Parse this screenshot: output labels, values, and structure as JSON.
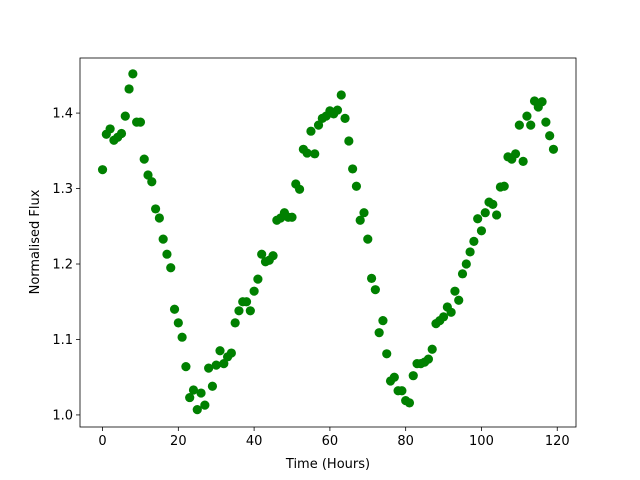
{
  "chart_data": {
    "type": "scatter",
    "x_label": "Time (Hours)",
    "y_label": "Normalised Flux",
    "x": [
      0,
      1,
      2,
      3,
      4,
      5,
      6,
      7,
      8,
      9,
      10,
      11,
      12,
      13,
      14,
      15,
      16,
      17,
      18,
      19,
      20,
      21,
      22,
      23,
      24,
      25,
      26,
      27,
      28,
      29,
      30,
      31,
      32,
      33,
      34,
      35,
      36,
      37,
      38,
      39,
      40,
      41,
      42,
      43,
      44,
      45,
      46,
      47,
      48,
      49,
      50,
      51,
      52,
      53,
      54,
      55,
      56,
      57,
      58,
      59,
      60,
      61,
      62,
      63,
      64,
      65,
      66,
      67,
      68,
      69,
      70,
      71,
      72,
      73,
      74,
      75,
      76,
      77,
      78,
      79,
      80,
      81,
      82,
      83,
      84,
      85,
      86,
      87,
      88,
      89,
      90,
      91,
      92,
      93,
      94,
      95,
      96,
      97,
      98,
      99,
      100,
      101,
      102,
      103,
      104,
      105,
      106,
      107,
      108,
      109,
      110,
      111,
      112,
      113,
      114,
      115,
      116,
      117,
      118,
      119
    ],
    "series": [
      {
        "color": "#008000",
        "values": [
          1.325,
          1.372,
          1.379,
          1.364,
          1.368,
          1.373,
          1.396,
          1.432,
          1.452,
          1.388,
          1.388,
          1.339,
          1.318,
          1.309,
          1.273,
          1.261,
          1.233,
          1.213,
          1.195,
          1.14,
          1.122,
          1.103,
          1.064,
          1.023,
          1.033,
          1.007,
          1.029,
          1.013,
          1.062,
          1.038,
          1.066,
          1.085,
          1.068,
          1.077,
          1.082,
          1.122,
          1.138,
          1.15,
          1.15,
          1.138,
          1.164,
          1.18,
          1.213,
          1.203,
          1.205,
          1.211,
          1.258,
          1.261,
          1.268,
          1.262,
          1.262,
          1.306,
          1.299,
          1.352,
          1.347,
          1.376,
          1.346,
          1.384,
          1.393,
          1.396,
          1.403,
          1.399,
          1.404,
          1.424,
          1.393,
          1.363,
          1.326,
          1.303,
          1.258,
          1.268,
          1.233,
          1.181,
          1.166,
          1.109,
          1.125,
          1.081,
          1.045,
          1.05,
          1.032,
          1.032,
          1.019,
          1.016,
          1.052,
          1.068,
          1.068,
          1.07,
          1.074,
          1.087,
          1.121,
          1.125,
          1.13,
          1.143,
          1.136,
          1.164,
          1.152,
          1.187,
          1.2,
          1.216,
          1.23,
          1.26,
          1.244,
          1.268,
          1.282,
          1.279,
          1.265,
          1.302,
          1.303,
          1.342,
          1.339,
          1.346,
          1.384,
          1.336,
          1.396,
          1.384,
          1.416,
          1.408,
          1.415,
          1.388,
          1.37,
          1.352
        ]
      }
    ],
    "xlim": [
      -5.95,
      124.95
    ],
    "xticks": [
      0,
      20,
      40,
      60,
      80,
      100,
      120
    ],
    "ylim": [
      0.984,
      1.473
    ],
    "yticks": [
      {
        "value": 1,
        "label": "1.0"
      },
      1.1,
      1.2,
      1.3,
      1.4
    ]
  }
}
